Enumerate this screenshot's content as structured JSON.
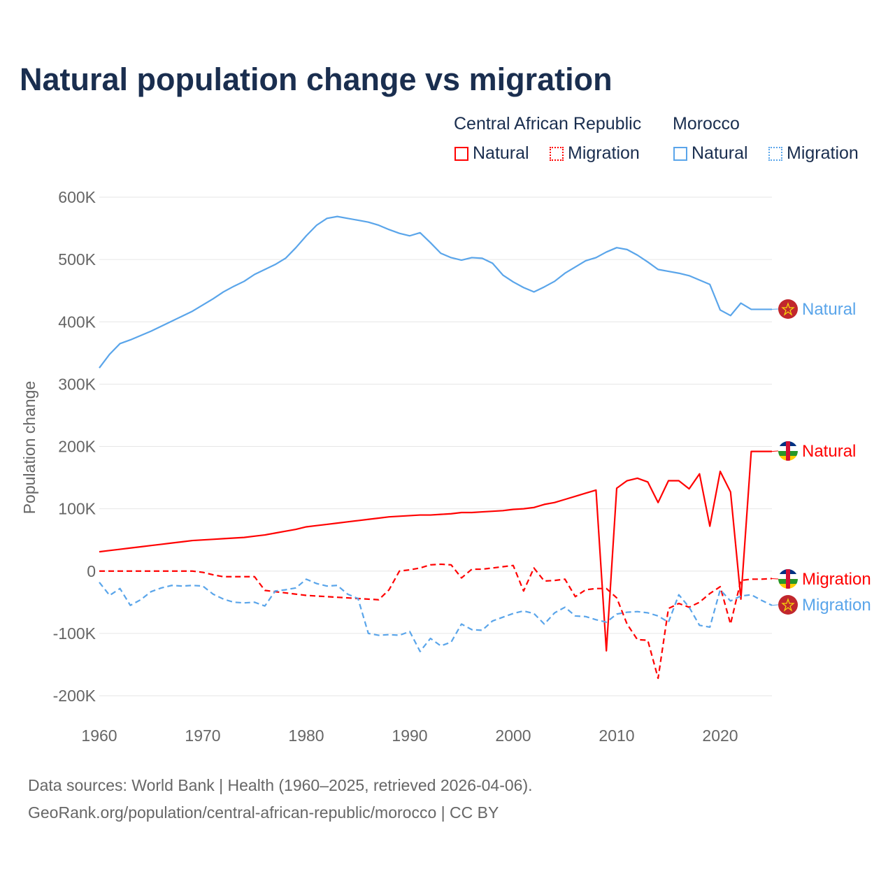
{
  "title": "Natural population change vs migration",
  "legend": {
    "groups": [
      {
        "country": "Central African Republic",
        "items": [
          "Natural",
          "Migration"
        ],
        "color": "#ff0000"
      },
      {
        "country": "Morocco",
        "items": [
          "Natural",
          "Migration"
        ],
        "color": "#5aa5ea"
      }
    ]
  },
  "footer": {
    "line1": "Data sources: World Bank | Health (1960–2025, retrieved 2026-04-06).",
    "line2": "GeoRank.org/population/central-african-republic/morocco | CC BY"
  },
  "chart_data": {
    "type": "line",
    "title": "Natural population change vs migration",
    "xlabel": "",
    "ylabel": "Population change",
    "xlim": [
      1960,
      2025
    ],
    "ylim": [
      -200000,
      600000
    ],
    "x_ticks": [
      "1960",
      "1970",
      "1980",
      "1990",
      "2000",
      "2010",
      "2020"
    ],
    "y_ticks": [
      {
        "v": 600000,
        "label": "600K"
      },
      {
        "v": 500000,
        "label": "500K"
      },
      {
        "v": 400000,
        "label": "400K"
      },
      {
        "v": 300000,
        "label": "300K"
      },
      {
        "v": 200000,
        "label": "200K"
      },
      {
        "v": 100000,
        "label": "100K"
      },
      {
        "v": 0,
        "label": "0"
      },
      {
        "v": -100000,
        "label": "-100K"
      },
      {
        "v": -200000,
        "label": "-200K"
      }
    ],
    "grid": true,
    "legend_position": "top-right",
    "x_start": 1960,
    "series": [
      {
        "name": "Morocco Natural",
        "end_label": "Natural",
        "country": "Morocco",
        "color": "#5aa5ea",
        "dash": "solid",
        "values_k": [
          326,
          348,
          365,
          371,
          378,
          385,
          393,
          401,
          409,
          417,
          427,
          437,
          448,
          457,
          465,
          476,
          484,
          492,
          502,
          519,
          538,
          555,
          566,
          569,
          566,
          563,
          560,
          555,
          548,
          542,
          538,
          543,
          527,
          510,
          503,
          499,
          503,
          502,
          494,
          475,
          464,
          455,
          448,
          456,
          465,
          478,
          488,
          498,
          503,
          512,
          519,
          516,
          507,
          496,
          484,
          481,
          478,
          474,
          467,
          460,
          419,
          410,
          430,
          420,
          420,
          420
        ]
      },
      {
        "name": "Central African Republic Natural",
        "end_label": "Natural",
        "country": "Central African Republic",
        "color": "#ff0000",
        "dash": "solid",
        "values_k": [
          31,
          33,
          35,
          37,
          39,
          41,
          43,
          45,
          47,
          49,
          50,
          51,
          52,
          53,
          54,
          56,
          58,
          61,
          64,
          67,
          71,
          73,
          75,
          77,
          79,
          81,
          83,
          85,
          87,
          88,
          89,
          90,
          90,
          91,
          92,
          94,
          94,
          95,
          96,
          97,
          99,
          100,
          102,
          107,
          110,
          115,
          120,
          125,
          130,
          -128,
          133,
          145,
          149,
          143,
          110,
          145,
          145,
          132,
          156,
          72,
          160,
          127,
          -45,
          192,
          192,
          192
        ]
      },
      {
        "name": "Central African Republic Migration",
        "end_label": "Migration",
        "country": "Central African Republic",
        "color": "#ff0000",
        "dash": "dashed",
        "values_k": [
          0,
          0,
          0,
          0,
          0,
          0,
          0,
          0,
          0,
          0,
          -2,
          -6,
          -9,
          -9,
          -9,
          -9,
          -31,
          -33,
          -35,
          -37,
          -39,
          -40,
          -41,
          -42,
          -43,
          -44,
          -45,
          -46,
          -30,
          0,
          2,
          5,
          10,
          11,
          10,
          -11,
          3,
          3,
          5,
          7,
          9,
          -32,
          5,
          -16,
          -15,
          -13,
          -41,
          -30,
          -28,
          -28,
          -43,
          -85,
          -110,
          -111,
          -172,
          -60,
          -52,
          -58,
          -50,
          -36,
          -25,
          -85,
          -15,
          -13,
          -13,
          -12
        ]
      },
      {
        "name": "Morocco Migration",
        "end_label": "Migration",
        "country": "Morocco",
        "color": "#5aa5ea",
        "dash": "dashed",
        "values_k": [
          -18,
          -39,
          -28,
          -55,
          -46,
          -33,
          -27,
          -23,
          -24,
          -23,
          -24,
          -37,
          -45,
          -50,
          -51,
          -50,
          -56,
          -32,
          -30,
          -27,
          -13,
          -20,
          -24,
          -23,
          -37,
          -44,
          -100,
          -103,
          -102,
          -103,
          -97,
          -129,
          -108,
          -120,
          -114,
          -85,
          -94,
          -95,
          -80,
          -74,
          -68,
          -64,
          -68,
          -85,
          -67,
          -58,
          -72,
          -73,
          -78,
          -82,
          -69,
          -66,
          -65,
          -67,
          -72,
          -82,
          -38,
          -58,
          -87,
          -90,
          -30,
          -48,
          -40,
          -38,
          -47,
          -55
        ]
      }
    ]
  }
}
